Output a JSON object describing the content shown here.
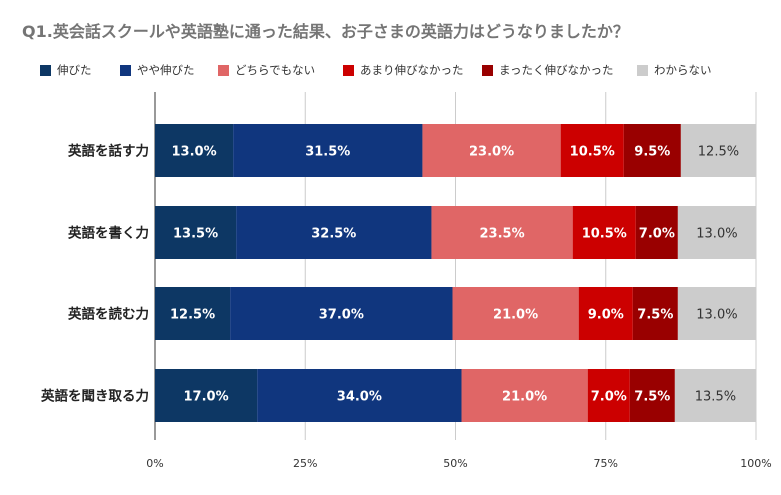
{
  "chart_data": {
    "type": "bar",
    "orientation": "horizontal",
    "stacked": true,
    "title": "Q1.英会話スクールや英語塾に通った結果、お子さまの英語力はどうなりましたか？",
    "categories": [
      "英語を話す力",
      "英語を書く力",
      "英語を読む力",
      "英語を聞き取る力"
    ],
    "series": [
      {
        "name": "伸びた",
        "color": "#0d3764",
        "values": [
          13.0,
          13.5,
          12.5,
          17.0
        ]
      },
      {
        "name": "やや伸びた",
        "color": "#10367e",
        "values": [
          31.5,
          32.5,
          37.0,
          34.0
        ]
      },
      {
        "name": "どちらでもない",
        "color": "#e06666",
        "values": [
          23.0,
          23.5,
          21.0,
          21.0
        ]
      },
      {
        "name": "あまり伸びなかった",
        "color": "#cc0000",
        "values": [
          10.5,
          10.5,
          9.0,
          7.0
        ]
      },
      {
        "name": "まったく伸びなかった",
        "color": "#990000",
        "values": [
          9.5,
          7.0,
          7.5,
          7.5
        ]
      },
      {
        "name": "わからない",
        "color": "#cccccc",
        "values": [
          12.5,
          13.0,
          13.0,
          13.5
        ]
      }
    ],
    "value_labels": [
      [
        "13.0%",
        "31.5%",
        "23.0%",
        "10.5%",
        "9.5%",
        "12.5%"
      ],
      [
        "13.5%",
        "32.5%",
        "23.5%",
        "10.5%",
        "7.0%",
        "13.0%"
      ],
      [
        "12.5%",
        "37.0%",
        "21.0%",
        "9.0%",
        "7.5%",
        "13.0%"
      ],
      [
        "17.0%",
        "34.0%",
        "21.0%",
        "7.0%",
        "7.5%",
        "13.5%"
      ]
    ],
    "xlim": [
      0,
      100
    ],
    "x_ticks": [
      0,
      25,
      50,
      75,
      100
    ],
    "x_tick_labels": [
      "0%",
      "25%",
      "50%",
      "75%",
      "100%"
    ],
    "grid": true,
    "legend_position": "top"
  }
}
